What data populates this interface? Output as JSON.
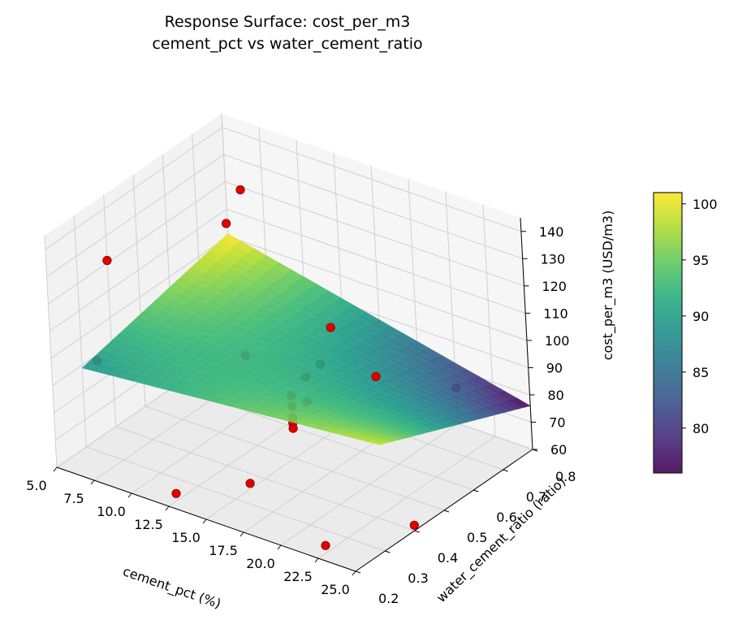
{
  "chart_data": {
    "type": "surface3d",
    "title_line1": "Response Surface: cost_per_m3",
    "title_line2": "cement_pct vs water_cement_ratio",
    "xlabel": "cement_pct (%)",
    "ylabel": "water_cement_ratio (ratio)",
    "zlabel": "cost_per_m3 (USD/m3)",
    "xlim": [
      5,
      25
    ],
    "ylim": [
      0.2,
      0.8
    ],
    "zlim": [
      60,
      145
    ],
    "x_ticks": [
      "5.0",
      "7.5",
      "10.0",
      "12.5",
      "15.0",
      "17.5",
      "20.0",
      "22.5",
      "25.0"
    ],
    "y_ticks": [
      "0.2",
      "0.3",
      "0.4",
      "0.5",
      "0.6",
      "0.7",
      "0.8"
    ],
    "z_ticks": [
      "60",
      "70",
      "80",
      "90",
      "100",
      "110",
      "120",
      "130",
      "140"
    ],
    "grid": true,
    "colormap": "viridis",
    "colorbar": {
      "range": [
        76,
        101
      ],
      "ticks": [
        "80",
        "85",
        "90",
        "95",
        "100"
      ]
    },
    "surface": {
      "x_range": [
        5,
        25
      ],
      "y_range": [
        0.3,
        0.8
      ],
      "z_corners": {
        "x5_y0.3": 89,
        "x25_y0.3": 99,
        "x5_y0.8": 101,
        "x25_y0.8": 76
      }
    },
    "points": [
      {
        "x": 5,
        "y": 0.4,
        "z": 121
      },
      {
        "x": 6,
        "y": 0.8,
        "z": 119
      },
      {
        "x": 7,
        "y": 0.7,
        "z": 116
      },
      {
        "x": 20,
        "y": 0.4,
        "z": 125
      },
      {
        "x": 25,
        "y": 0.3,
        "z": 124
      },
      {
        "x": 5,
        "y": 0.35,
        "z": 88
      },
      {
        "x": 12,
        "y": 0.5,
        "z": 92
      },
      {
        "x": 15,
        "y": 0.6,
        "z": 87
      },
      {
        "x": 15,
        "y": 0.55,
        "z": 86
      },
      {
        "x": 15,
        "y": 0.5,
        "z": 83
      },
      {
        "x": 15,
        "y": 0.5,
        "z": 79
      },
      {
        "x": 15,
        "y": 0.55,
        "z": 77
      },
      {
        "x": 15,
        "y": 0.5,
        "z": 75
      },
      {
        "x": 15,
        "y": 0.5,
        "z": 73
      },
      {
        "x": 15,
        "y": 0.5,
        "z": 71
      },
      {
        "x": 25,
        "y": 0.4,
        "z": 62
      },
      {
        "x": 20,
        "y": 0.8,
        "z": 73
      },
      {
        "x": 12,
        "y": 0.25,
        "z": 60
      },
      {
        "x": 15,
        "y": 0.35,
        "z": 62
      },
      {
        "x": 22,
        "y": 0.25,
        "z": 60
      }
    ]
  },
  "colors": {
    "point_fill": "#e00000",
    "point_edge": "#8b0000",
    "pane_fill": "#f2f2f2",
    "grid_line": "#cfcfcf"
  }
}
